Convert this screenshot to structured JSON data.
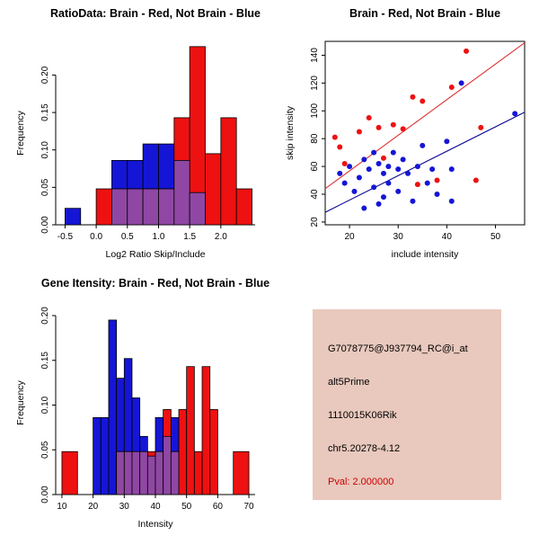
{
  "figure": {
    "background": "#ffffff"
  },
  "chart_data": [
    {
      "id": "hist_ratio",
      "type": "histogram-overlay",
      "title": "RatioData: Brain - Red, Not Brain - Blue",
      "xlabel": "Log2 Ratio Skip/Include",
      "ylabel": "Frequency",
      "frame": "axes",
      "xlim": [
        -0.65,
        2.55
      ],
      "ylim": [
        0,
        0.245
      ],
      "xticks": [
        {
          "v": -0.5,
          "label": "-0.5"
        },
        {
          "v": 0,
          "label": "0.0"
        },
        {
          "v": 0.5,
          "label": "0.5"
        },
        {
          "v": 1,
          "label": "1.0"
        },
        {
          "v": 1.5,
          "label": "1.5"
        },
        {
          "v": 2,
          "label": "2.0"
        }
      ],
      "yticks": [
        {
          "v": 0,
          "label": "0.00"
        },
        {
          "v": 0.05,
          "label": "0.05"
        },
        {
          "v": 0.1,
          "label": "0.10"
        },
        {
          "v": 0.15,
          "label": "0.15"
        },
        {
          "v": 0.2,
          "label": "0.20"
        }
      ],
      "overlap_color": "#8f47a3",
      "series": [
        {
          "name": "Not Brain",
          "color": "#1515d6",
          "bars": [
            [
              -0.5,
              -0.25,
              0.022
            ],
            [
              0.25,
              0.5,
              0.086
            ],
            [
              0.5,
              0.75,
              0.086
            ],
            [
              0.75,
              1.0,
              0.108
            ],
            [
              1.0,
              1.25,
              0.108
            ],
            [
              1.25,
              1.5,
              0.086
            ],
            [
              1.5,
              1.75,
              0.043
            ]
          ]
        },
        {
          "name": "Brain",
          "color": "#ee1111",
          "bars": [
            [
              0.0,
              0.25,
              0.048
            ],
            [
              0.25,
              0.5,
              0.048
            ],
            [
              0.5,
              0.75,
              0.048
            ],
            [
              0.75,
              1.0,
              0.048
            ],
            [
              1.0,
              1.25,
              0.048
            ],
            [
              1.25,
              1.5,
              0.143
            ],
            [
              1.5,
              1.75,
              0.238
            ],
            [
              1.75,
              2.0,
              0.095
            ],
            [
              2.0,
              2.25,
              0.143
            ],
            [
              2.25,
              2.5,
              0.048
            ]
          ]
        }
      ]
    },
    {
      "id": "scatter_intensity",
      "type": "scatter",
      "title": "Brain - Red, Not Brain - Blue",
      "xlabel": "include intensity",
      "ylabel": "skip intensity",
      "frame": "box",
      "xlim": [
        15,
        56
      ],
      "ylim": [
        18,
        150
      ],
      "xticks": [
        {
          "v": 20,
          "label": "20"
        },
        {
          "v": 30,
          "label": "30"
        },
        {
          "v": 40,
          "label": "40"
        },
        {
          "v": 50,
          "label": "50"
        }
      ],
      "yticks": [
        {
          "v": 20,
          "label": "20"
        },
        {
          "v": 40,
          "label": "40"
        },
        {
          "v": 60,
          "label": "60"
        },
        {
          "v": 80,
          "label": "80"
        },
        {
          "v": 100,
          "label": "100"
        },
        {
          "v": 120,
          "label": "120"
        },
        {
          "v": 140,
          "label": "140"
        }
      ],
      "lines": [
        {
          "x1": 15,
          "y1": 44,
          "x2": 56,
          "y2": 149,
          "color": "#dd3333"
        },
        {
          "x1": 15,
          "y1": 27,
          "x2": 56,
          "y2": 99,
          "color": "#00008b"
        }
      ],
      "series": [
        {
          "name": "Brain",
          "color": "#ee1111",
          "points": [
            [
              17,
              81
            ],
            [
              18,
              74
            ],
            [
              19,
              62
            ],
            [
              22,
              85
            ],
            [
              24,
              95
            ],
            [
              26,
              88
            ],
            [
              27,
              66
            ],
            [
              29,
              90
            ],
            [
              31,
              87
            ],
            [
              33,
              110
            ],
            [
              34,
              47
            ],
            [
              35,
              107
            ],
            [
              38,
              50
            ],
            [
              41,
              117
            ],
            [
              44,
              143
            ],
            [
              46,
              50
            ],
            [
              47,
              88
            ]
          ]
        },
        {
          "name": "Not Brain",
          "color": "#1515d6",
          "points": [
            [
              18,
              55
            ],
            [
              19,
              48
            ],
            [
              20,
              60
            ],
            [
              21,
              42
            ],
            [
              22,
              52
            ],
            [
              23,
              65
            ],
            [
              23,
              30
            ],
            [
              24,
              58
            ],
            [
              25,
              45
            ],
            [
              25,
              70
            ],
            [
              26,
              62
            ],
            [
              26,
              33
            ],
            [
              27,
              55
            ],
            [
              27,
              38
            ],
            [
              28,
              60
            ],
            [
              28,
              48
            ],
            [
              29,
              70
            ],
            [
              30,
              58
            ],
            [
              30,
              42
            ],
            [
              31,
              65
            ],
            [
              32,
              55
            ],
            [
              33,
              35
            ],
            [
              34,
              60
            ],
            [
              35,
              75
            ],
            [
              36,
              48
            ],
            [
              37,
              58
            ],
            [
              38,
              40
            ],
            [
              40,
              78
            ],
            [
              41,
              58
            ],
            [
              41,
              35
            ],
            [
              43,
              120
            ],
            [
              54,
              98
            ]
          ]
        }
      ]
    },
    {
      "id": "hist_gene",
      "type": "histogram-overlay",
      "title": "Gene Itensity: Brain - Red, Not Brain - Blue",
      "xlabel": "Intensity",
      "ylabel": "Frequency",
      "frame": "axes",
      "xlim": [
        8,
        72
      ],
      "ylim": [
        0,
        0.205
      ],
      "xticks": [
        {
          "v": 10,
          "label": "10"
        },
        {
          "v": 20,
          "label": "20"
        },
        {
          "v": 30,
          "label": "30"
        },
        {
          "v": 40,
          "label": "40"
        },
        {
          "v": 50,
          "label": "50"
        },
        {
          "v": 60,
          "label": "60"
        },
        {
          "v": 70,
          "label": "70"
        }
      ],
      "yticks": [
        {
          "v": 0,
          "label": "0.00"
        },
        {
          "v": 0.05,
          "label": "0.05"
        },
        {
          "v": 0.1,
          "label": "0.10"
        },
        {
          "v": 0.15,
          "label": "0.15"
        },
        {
          "v": 0.2,
          "label": "0.20"
        }
      ],
      "overlap_color": "#8f47a3",
      "series": [
        {
          "name": "Not Brain",
          "color": "#1515d6",
          "bars": [
            [
              20,
              22.5,
              0.086
            ],
            [
              22.5,
              25,
              0.086
            ],
            [
              25,
              27.5,
              0.195
            ],
            [
              27.5,
              30,
              0.13
            ],
            [
              30,
              32.5,
              0.152
            ],
            [
              32.5,
              35,
              0.108
            ],
            [
              35,
              37.5,
              0.065
            ],
            [
              37.5,
              40,
              0.043
            ],
            [
              40,
              42.5,
              0.086
            ],
            [
              42.5,
              45,
              0.065
            ],
            [
              45,
              47.5,
              0.086
            ]
          ]
        },
        {
          "name": "Brain",
          "color": "#ee1111",
          "bars": [
            [
              10,
              15,
              0.048
            ],
            [
              27.5,
              30,
              0.048
            ],
            [
              30,
              32.5,
              0.048
            ],
            [
              32.5,
              35,
              0.048
            ],
            [
              35,
              37.5,
              0.048
            ],
            [
              37.5,
              40,
              0.048
            ],
            [
              40,
              42.5,
              0.048
            ],
            [
              42.5,
              45,
              0.095
            ],
            [
              45,
              47.5,
              0.048
            ],
            [
              47.5,
              50,
              0.095
            ],
            [
              50,
              52.5,
              0.143
            ],
            [
              52.5,
              55,
              0.048
            ],
            [
              55,
              57.5,
              0.143
            ],
            [
              57.5,
              60,
              0.095
            ],
            [
              65,
              70,
              0.048
            ]
          ]
        }
      ]
    }
  ],
  "info_panel": {
    "background": "#e9c8bd",
    "lines": [
      {
        "text": "G7078775@J937794_RC@i_at",
        "color": "#000000"
      },
      {
        "text": "alt5Prime",
        "color": "#000000"
      },
      {
        "text": "1110015K06Rik",
        "color": "#000000"
      },
      {
        "text": "chr5.20278-4.12",
        "color": "#000000"
      },
      {
        "text": "Pval: 2.000000",
        "color": "#cc0000"
      }
    ]
  }
}
